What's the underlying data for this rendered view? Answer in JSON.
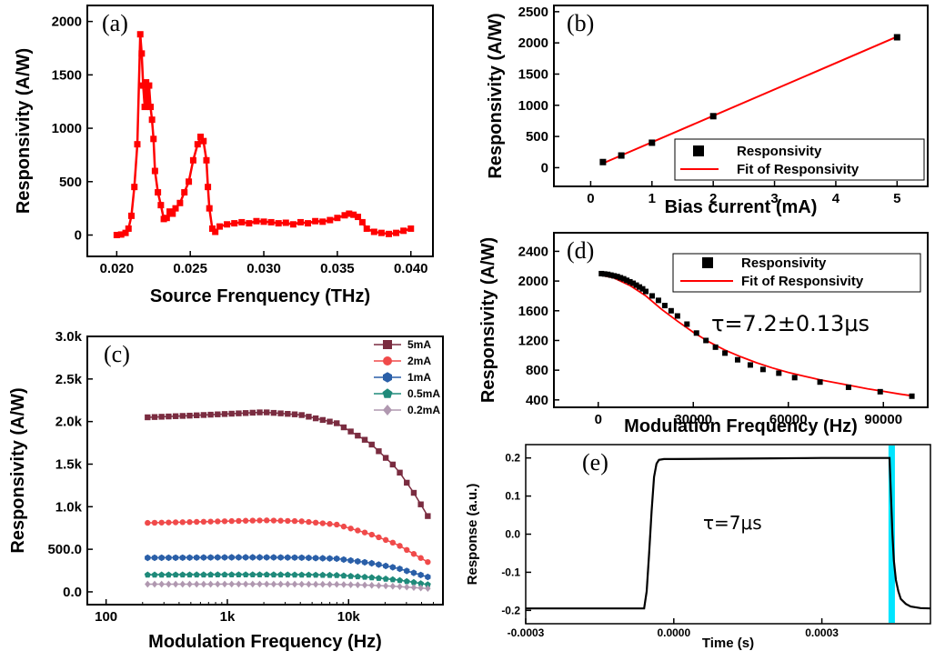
{
  "chart_data": [
    {
      "panel": "(a)",
      "type": "line",
      "xlabel": "Source Frenquency (THz)",
      "ylabel": "Responsivity (A/W)",
      "xlim": [
        0.018,
        0.0415
      ],
      "ylim": [
        -200,
        2150
      ],
      "x_ticks": [
        "0.020",
        "0.025",
        "0.030",
        "0.035",
        "0.040"
      ],
      "x_tick_values": [
        0.02,
        0.025,
        0.03,
        0.035,
        0.04
      ],
      "y_ticks": [
        "0",
        "500",
        "1000",
        "1500",
        "2000"
      ],
      "y_tick_values": [
        0,
        500,
        1000,
        1500,
        2000
      ],
      "color": "#ff0000",
      "marker": "square",
      "grid": false,
      "x": [
        0.02,
        0.0203,
        0.0206,
        0.0208,
        0.021,
        0.0212,
        0.0214,
        0.0216,
        0.0217,
        0.0218,
        0.0219,
        0.022,
        0.0221,
        0.0222,
        0.0223,
        0.0224,
        0.0225,
        0.0226,
        0.0228,
        0.023,
        0.0232,
        0.0234,
        0.0236,
        0.0238,
        0.024,
        0.0243,
        0.0246,
        0.0249,
        0.0252,
        0.0255,
        0.0257,
        0.0259,
        0.0261,
        0.0262,
        0.0263,
        0.0265,
        0.0267,
        0.027,
        0.0275,
        0.028,
        0.0285,
        0.029,
        0.0295,
        0.03,
        0.0305,
        0.031,
        0.0315,
        0.032,
        0.0325,
        0.033,
        0.0335,
        0.034,
        0.0345,
        0.035,
        0.0355,
        0.0358,
        0.0361,
        0.0364,
        0.0367,
        0.037,
        0.0375,
        0.038,
        0.0385,
        0.039,
        0.0395,
        0.04
      ],
      "y": [
        0,
        5,
        20,
        60,
        180,
        450,
        850,
        1880,
        1700,
        1400,
        1200,
        1430,
        1250,
        1400,
        1200,
        1080,
        900,
        600,
        400,
        280,
        150,
        160,
        220,
        200,
        250,
        300,
        400,
        500,
        700,
        850,
        920,
        880,
        700,
        450,
        250,
        60,
        30,
        80,
        100,
        110,
        120,
        110,
        130,
        125,
        120,
        110,
        115,
        100,
        120,
        110,
        130,
        125,
        140,
        160,
        185,
        200,
        190,
        170,
        120,
        60,
        30,
        20,
        10,
        20,
        40,
        60
      ]
    },
    {
      "panel": "(b)",
      "type": "scatter",
      "xlabel": "Bias current (mA)",
      "ylabel": "Responsivity (A/W)",
      "xlim": [
        -0.6,
        5.5
      ],
      "ylim": [
        -300,
        2600
      ],
      "x_ticks": [
        "0",
        "1",
        "2",
        "3",
        "4",
        "5"
      ],
      "x_tick_values": [
        0,
        1,
        2,
        3,
        4,
        5
      ],
      "y_ticks": [
        "0",
        "500",
        "1000",
        "1500",
        "2000",
        "2500"
      ],
      "y_tick_values": [
        0,
        500,
        1000,
        1500,
        2000,
        2500
      ],
      "legend": [
        "Responsivity",
        "Fit of Responsivity"
      ],
      "legend_position": "bottom-right",
      "points": {
        "x": [
          0.2,
          0.5,
          1,
          2,
          5
        ],
        "y": [
          90,
          195,
          400,
          825,
          2090
        ]
      },
      "fit": {
        "x": [
          0.2,
          5
        ],
        "y": [
          70,
          2100
        ]
      }
    },
    {
      "panel": "(c)",
      "type": "line",
      "x_scale": "log",
      "xlabel": "Modulation Frequency (Hz)",
      "ylabel": "Responsivity (A/W)",
      "xlim": [
        70,
        60000
      ],
      "ylim": [
        -150,
        3000
      ],
      "x_ticks": [
        "100",
        "1k",
        "10k"
      ],
      "x_tick_values": [
        100,
        1000,
        10000
      ],
      "y_ticks": [
        "0.0",
        "500.0",
        "1.0k",
        "1.5k",
        "2.0k",
        "2.5k",
        "3.0k"
      ],
      "y_tick_values": [
        0,
        500,
        1000,
        1500,
        2000,
        2500,
        3000
      ],
      "legend_position": "top-right",
      "series": [
        {
          "name": "5mA",
          "color": "#7a2c40",
          "marker": "square",
          "x": [
            220,
            500,
            1000,
            2000,
            4000,
            8000,
            15000,
            25000,
            35000,
            45000
          ],
          "y": [
            2050,
            2070,
            2090,
            2110,
            2080,
            1980,
            1750,
            1450,
            1150,
            890
          ]
        },
        {
          "name": "2mA",
          "color": "#f04a4a",
          "marker": "circle",
          "x": [
            220,
            500,
            1000,
            2000,
            4000,
            8000,
            15000,
            25000,
            35000,
            45000
          ],
          "y": [
            810,
            820,
            830,
            840,
            830,
            790,
            680,
            560,
            440,
            350
          ]
        },
        {
          "name": "1mA",
          "color": "#2a5fa8",
          "marker": "hexagon",
          "x": [
            220,
            500,
            1000,
            2000,
            4000,
            8000,
            15000,
            25000,
            35000,
            45000
          ],
          "y": [
            400,
            402,
            405,
            405,
            402,
            390,
            340,
            280,
            220,
            175
          ]
        },
        {
          "name": "0.5mA",
          "color": "#1f8a7a",
          "marker": "pentagon",
          "x": [
            220,
            500,
            1000,
            2000,
            4000,
            8000,
            15000,
            25000,
            35000,
            45000
          ],
          "y": [
            200,
            201,
            202,
            202,
            200,
            195,
            170,
            140,
            110,
            85
          ]
        },
        {
          "name": "0.2mA",
          "color": "#b098b0",
          "marker": "diamond",
          "x": [
            220,
            500,
            1000,
            2000,
            4000,
            8000,
            15000,
            25000,
            35000,
            45000
          ],
          "y": [
            90,
            90,
            91,
            91,
            90,
            88,
            78,
            64,
            50,
            40
          ]
        }
      ]
    },
    {
      "panel": "(d)",
      "type": "scatter",
      "xlabel": "Modulation Frequency (Hz)",
      "ylabel": "Responsivity (A/W)",
      "xlim": [
        -14000,
        104000
      ],
      "ylim": [
        300,
        2650
      ],
      "x_ticks": [
        "0",
        "30000",
        "60000",
        "90000"
      ],
      "x_tick_values": [
        0,
        30000,
        60000,
        90000
      ],
      "y_ticks": [
        "400",
        "800",
        "1200",
        "1600",
        "2000",
        "2400"
      ],
      "y_tick_values": [
        400,
        800,
        1200,
        1600,
        2000,
        2400
      ],
      "legend": [
        "Responsivity",
        "Fit of Responsivity"
      ],
      "legend_position": "top-right",
      "annotation": "τ=7.2±0.13μs",
      "points": {
        "x": [
          1000,
          2000,
          3000,
          4000,
          5000,
          6000,
          7000,
          8000,
          9000,
          10000,
          11000,
          12000,
          13000,
          14000,
          15000,
          17000,
          19000,
          21000,
          23000,
          25000,
          28000,
          31000,
          34000,
          37000,
          40000,
          44000,
          48000,
          52000,
          57000,
          62000,
          70000,
          79000,
          89000,
          99000
        ],
        "y": [
          2100,
          2095,
          2090,
          2080,
          2070,
          2060,
          2045,
          2030,
          2010,
          1990,
          1970,
          1945,
          1920,
          1895,
          1860,
          1800,
          1740,
          1670,
          1600,
          1530,
          1420,
          1300,
          1200,
          1110,
          1030,
          940,
          870,
          810,
          760,
          700,
          640,
          570,
          510,
          450
        ]
      },
      "fit": {
        "x": [
          1000,
          5000,
          10000,
          15000,
          20000,
          25000,
          30000,
          35000,
          40000,
          45000,
          50000,
          55000,
          60000,
          65000,
          70000,
          75000,
          80000,
          85000,
          90000,
          95000,
          99000
        ],
        "y": [
          2080,
          2040,
          1940,
          1800,
          1620,
          1460,
          1310,
          1180,
          1070,
          980,
          900,
          830,
          770,
          720,
          670,
          630,
          590,
          550,
          515,
          480,
          455
        ]
      }
    },
    {
      "panel": "(e)",
      "type": "line",
      "xlabel": "Time (s)",
      "ylabel": "Response (a.u.)",
      "xlim": [
        -0.0003,
        0.00052
      ],
      "ylim": [
        -0.235,
        0.235
      ],
      "x_ticks": [
        "-0.0003",
        "0.0000",
        "0.0003"
      ],
      "x_tick_values": [
        -0.0003,
        0.0,
        0.0003
      ],
      "y_ticks": [
        "-0.2",
        "-0.1",
        "0.0",
        "0.1",
        "0.2"
      ],
      "y_tick_values": [
        -0.2,
        -0.1,
        0.0,
        0.1,
        0.2
      ],
      "annotation": "τ=7μs",
      "highlight_color": "#00e5ff",
      "highlight_x_range": [
        0.000435,
        0.000448
      ],
      "x": [
        -0.0003,
        -6e-05,
        -5.5e-05,
        -5e-05,
        -4.5e-05,
        -4e-05,
        -3.5e-05,
        -3e-05,
        -2e-05,
        0.0,
        0.0001,
        0.0002,
        0.0003,
        0.00036,
        0.000437,
        0.00044,
        0.000443,
        0.000446,
        0.00045,
        0.000455,
        0.00046,
        0.00047,
        0.00048,
        0.0005,
        0.00052
      ],
      "y": [
        -0.195,
        -0.195,
        -0.15,
        -0.05,
        0.06,
        0.15,
        0.185,
        0.195,
        0.197,
        0.197,
        0.198,
        0.199,
        0.2,
        0.2,
        0.2,
        0.1,
        0.0,
        -0.07,
        -0.12,
        -0.15,
        -0.17,
        -0.183,
        -0.19,
        -0.194,
        -0.195
      ]
    }
  ]
}
